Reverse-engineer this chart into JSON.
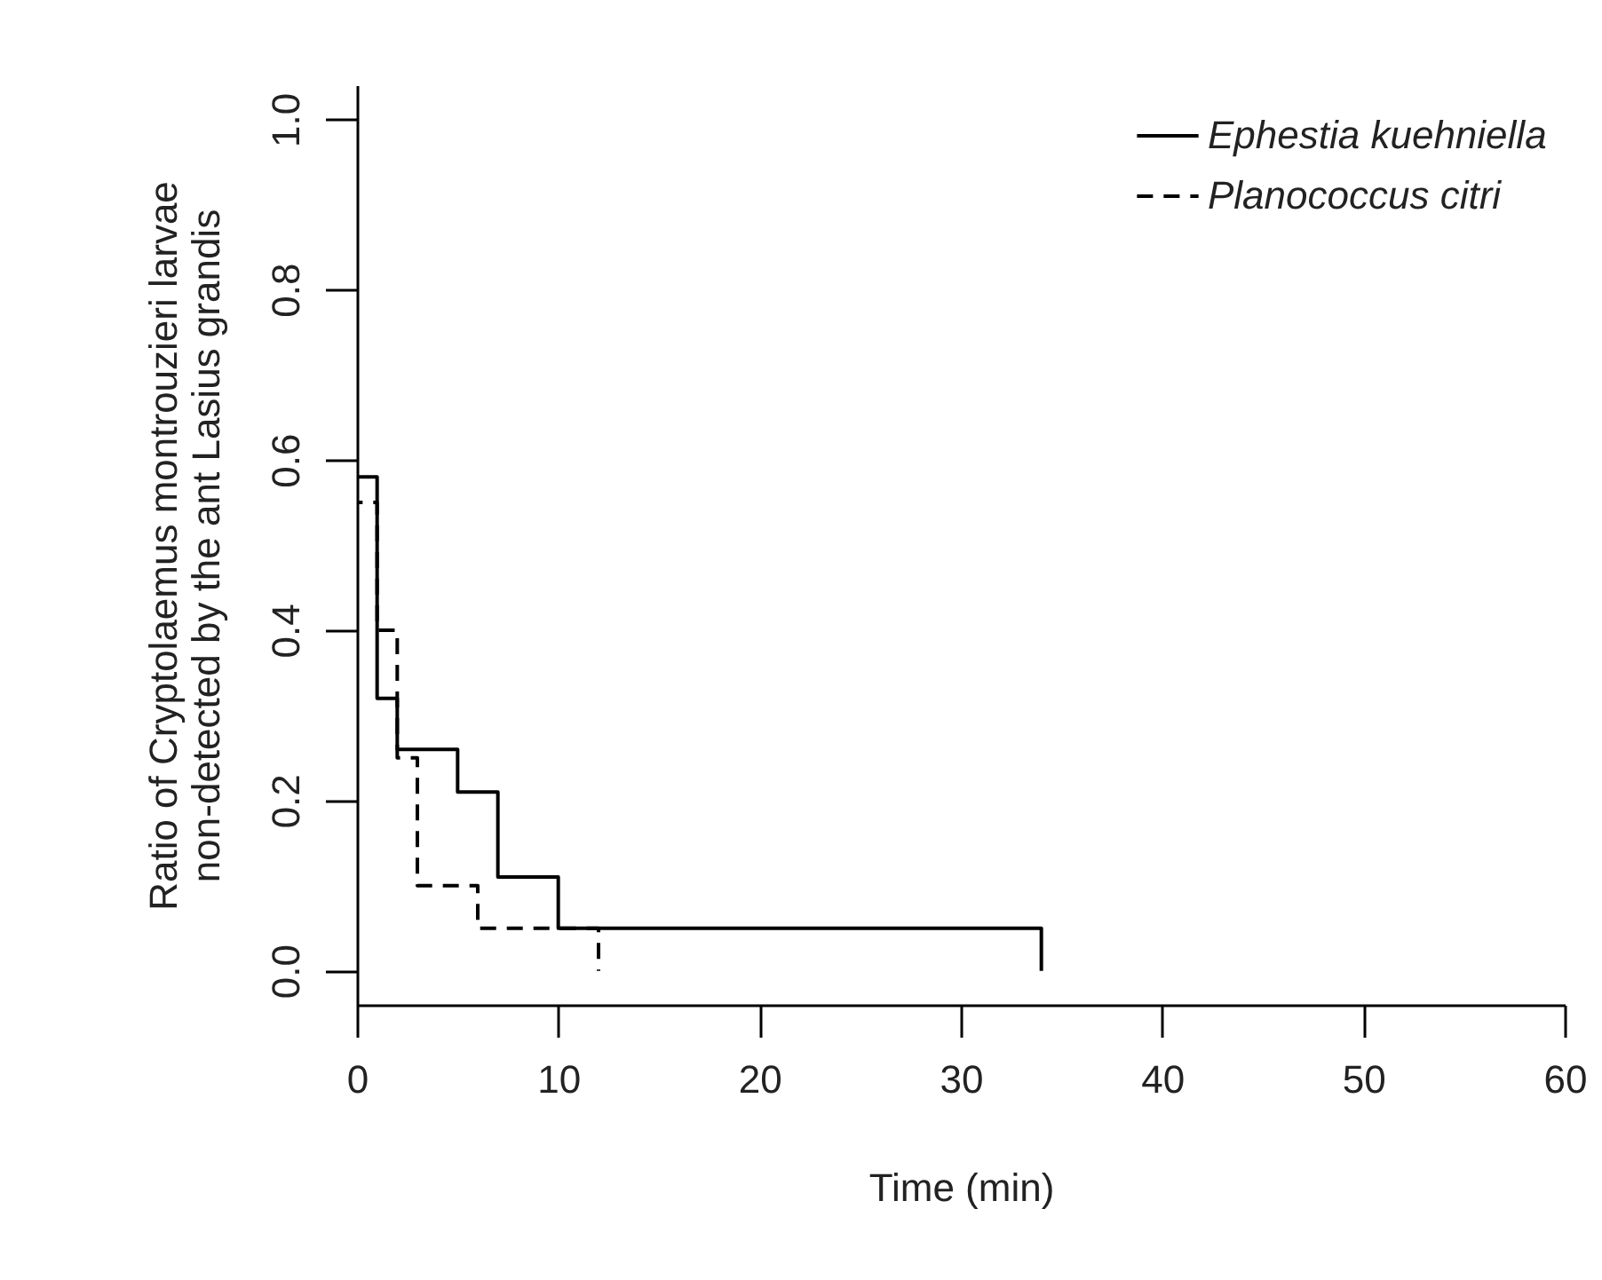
{
  "chart_data": {
    "type": "step",
    "xlabel": "Time (min)",
    "ylabel": "Ratio of Cryptolaemus montrouzieri larvae\nnon-detected by the ant Lasius grandis",
    "xlim": [
      0,
      60
    ],
    "xticks": [
      0,
      10,
      20,
      30,
      40,
      50,
      60
    ],
    "ylim": [
      -0.04,
      1.04
    ],
    "yticks": [
      {
        "value": 0,
        "label": "0.0"
      },
      {
        "value": 0.2,
        "label": "0.2"
      },
      {
        "value": 0.4,
        "label": "0.4"
      },
      {
        "value": 0.6,
        "label": "0.6"
      },
      {
        "value": 0.8,
        "label": "0.8"
      },
      {
        "value": 1,
        "label": "1.0"
      }
    ],
    "grid": false,
    "legend": "top right",
    "series": [
      {
        "name": "Ephestia kuehniella",
        "color": "#000000",
        "line_style": "solid",
        "x": [
          0,
          0,
          1,
          2,
          5,
          7,
          10,
          34,
          34
        ],
        "values": [
          1,
          0.58,
          0.32,
          0.26,
          0.21,
          0.11,
          0.05,
          0.05,
          0
        ]
      },
      {
        "name": "Planococcus citri",
        "color": "#000000",
        "line_style": "dashed",
        "x": [
          0,
          0,
          1,
          2,
          3,
          6,
          12,
          12
        ],
        "values": [
          1,
          0.55,
          0.4,
          0.25,
          0.1,
          0.05,
          0.05,
          0
        ]
      }
    ]
  }
}
